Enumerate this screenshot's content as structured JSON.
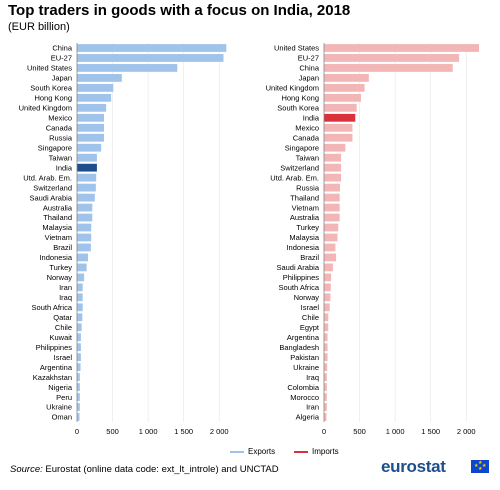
{
  "title": "Top traders in goods with a focus on India, 2018",
  "subtitle": "(EUR billion)",
  "legend": {
    "exports": "Exports",
    "imports": "Imports"
  },
  "source": {
    "label": "Source:",
    "text": "Eurostat (online data code: ext_lt_introle) and UNCTAD"
  },
  "logo": "eurostat",
  "colors": {
    "exports": "#9fc3ea",
    "exports_highlight": "#1f4e8c",
    "imports": "#f2b6b6",
    "imports_highlight": "#d9323a",
    "axis": "#888888"
  },
  "chart_data": [
    {
      "type": "bar",
      "orientation": "horizontal",
      "series": [
        {
          "name": "Exports"
        }
      ],
      "categories": [
        "China",
        "EU-27",
        "United States",
        "Japan",
        "South Korea",
        "Hong Kong",
        "United Kingdom",
        "Mexico",
        "Canada",
        "Russia",
        "Singapore",
        "Taiwan",
        "India",
        "Utd. Arab. Em.",
        "Switzerland",
        "Saudi Arabia",
        "Australia",
        "Thailand",
        "Malaysia",
        "Vietnam",
        "Brazil",
        "Indonesia",
        "Turkey",
        "Norway",
        "Iran",
        "Iraq",
        "South Africa",
        "Qatar",
        "Chile",
        "Kuwait",
        "Philippines",
        "Israel",
        "Argentina",
        "Kazakhstan",
        "Nigeria",
        "Peru",
        "Ukraine",
        "Oman"
      ],
      "values": [
        2100,
        2060,
        1410,
        630,
        510,
        480,
        410,
        380,
        380,
        380,
        340,
        280,
        280,
        270,
        265,
        250,
        215,
        215,
        200,
        200,
        195,
        155,
        135,
        100,
        80,
        80,
        80,
        75,
        65,
        55,
        55,
        55,
        50,
        40,
        40,
        40,
        40,
        35
      ],
      "highlight": "India",
      "xlim": [
        0,
        2250
      ],
      "xticks": [
        0,
        500,
        1000,
        1500,
        2000
      ],
      "xtick_labels": [
        "0",
        "500",
        "1 000",
        "1 500",
        "2 000"
      ]
    },
    {
      "type": "bar",
      "orientation": "horizontal",
      "series": [
        {
          "name": "Imports"
        }
      ],
      "categories": [
        "United States",
        "EU-27",
        "China",
        "Japan",
        "United Kingdom",
        "Hong Kong",
        "South Korea",
        "India",
        "Mexico",
        "Canada",
        "Singapore",
        "Taiwan",
        "Switzerland",
        "Utd. Arab. Em.",
        "Russia",
        "Thailand",
        "Vietnam",
        "Australia",
        "Turkey",
        "Malaysia",
        "Indonesia",
        "Brazil",
        "Saudi Arabia",
        "Philippines",
        "South Africa",
        "Norway",
        "Israel",
        "Chile",
        "Egypt",
        "Argentina",
        "Bangladesh",
        "Pakistan",
        "Ukraine",
        "Iraq",
        "Colombia",
        "Morocco",
        "Iran",
        "Algeria"
      ],
      "values": [
        2180,
        1900,
        1810,
        630,
        570,
        520,
        460,
        440,
        400,
        400,
        300,
        240,
        240,
        240,
        225,
        220,
        220,
        220,
        200,
        190,
        160,
        170,
        125,
        100,
        95,
        90,
        80,
        60,
        60,
        50,
        50,
        50,
        45,
        40,
        40,
        40,
        40,
        35
      ],
      "highlight": "India",
      "xlim": [
        0,
        2250
      ],
      "xticks": [
        0,
        500,
        1000,
        1500,
        2000
      ],
      "xtick_labels": [
        "0",
        "500",
        "1 000",
        "1 500",
        "2 000"
      ]
    }
  ]
}
